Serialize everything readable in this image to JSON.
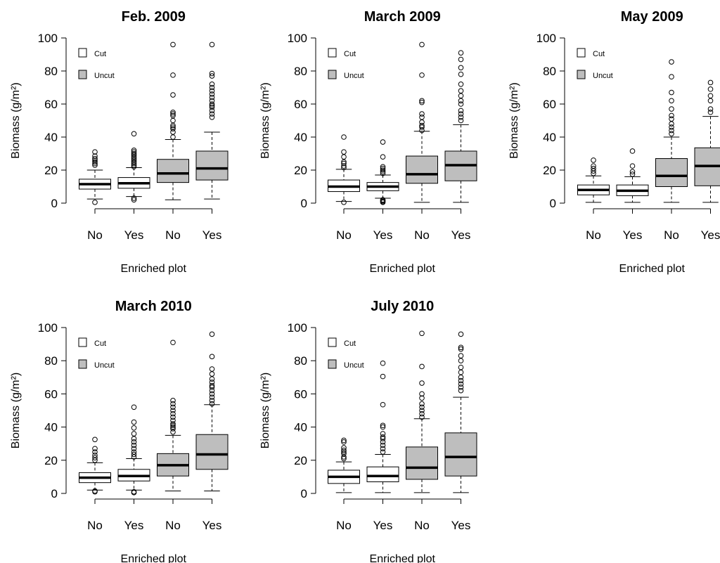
{
  "figure": {
    "legend": [
      {
        "label": "Cut",
        "color": "#ffffff"
      },
      {
        "label": "Uncut",
        "color": "#bebebe"
      }
    ]
  },
  "chart_data": [
    {
      "type": "boxplot",
      "title": "Feb. 2009",
      "xlabel": "Enriched plot",
      "ylabel": "Biomass (g/m²)",
      "ylim": [
        0,
        100
      ],
      "yticks": [
        0,
        20,
        40,
        60,
        80,
        100
      ],
      "categories": [
        "No",
        "Yes",
        "No",
        "Yes"
      ],
      "groups": [
        "Cut",
        "Cut",
        "Uncut",
        "Uncut"
      ],
      "boxes": [
        {
          "min": 2.5,
          "q1": 8.5,
          "median": 11.5,
          "q3": 14.5,
          "max": 20,
          "outliers": [
            0.5,
            23,
            24,
            25,
            26,
            27,
            28.5,
            31
          ]
        },
        {
          "min": 4,
          "q1": 9,
          "median": 12,
          "q3": 15.5,
          "max": 21.5,
          "outliers": [
            2,
            3,
            22,
            23,
            24,
            25,
            26,
            27,
            28,
            29,
            30,
            31,
            32,
            42
          ]
        },
        {
          "min": 2,
          "q1": 12.5,
          "median": 18,
          "q3": 26.5,
          "max": 38.5,
          "outliers": [
            40,
            43,
            45,
            46,
            47,
            50,
            53,
            54,
            55,
            65.5,
            77.5,
            96
          ]
        },
        {
          "min": 2.5,
          "q1": 14,
          "median": 21,
          "q3": 31.5,
          "max": 43,
          "outliers": [
            52,
            54,
            56,
            58,
            59,
            60,
            62,
            64,
            66,
            68,
            70,
            72,
            77,
            78.5,
            96
          ]
        }
      ]
    },
    {
      "type": "boxplot",
      "title": "March 2009",
      "xlabel": "Enriched plot",
      "ylabel": "Biomass (g/m²)",
      "ylim": [
        0,
        100
      ],
      "yticks": [
        0,
        20,
        40,
        60,
        80,
        100
      ],
      "categories": [
        "No",
        "Yes",
        "No",
        "Yes"
      ],
      "groups": [
        "Cut",
        "Cut",
        "Uncut",
        "Uncut"
      ],
      "boxes": [
        {
          "min": 1,
          "q1": 7,
          "median": 10,
          "q3": 14,
          "max": 20.5,
          "outliers": [
            0.5,
            21.5,
            22.5,
            24,
            25,
            28,
            31,
            40
          ]
        },
        {
          "min": 3,
          "q1": 7.5,
          "median": 10,
          "q3": 12.5,
          "max": 17,
          "outliers": [
            0.5,
            1,
            1.5,
            2,
            18,
            19,
            20,
            21,
            22,
            28,
            37
          ]
        },
        {
          "min": 0.5,
          "q1": 12,
          "median": 17.5,
          "q3": 28.5,
          "max": 43.5,
          "outliers": [
            44,
            46,
            47,
            49,
            52,
            54,
            61,
            62,
            77.5,
            96
          ]
        },
        {
          "min": 0.5,
          "q1": 13.5,
          "median": 23,
          "q3": 31.5,
          "max": 47.5,
          "outliers": [
            50,
            52,
            54,
            56,
            60,
            62,
            65,
            68,
            72,
            78,
            82,
            87,
            91
          ]
        }
      ]
    },
    {
      "type": "boxplot",
      "title": "May 2009",
      "xlabel": "Enriched plot",
      "ylabel": "Biomass (g/m²)",
      "ylim": [
        0,
        100
      ],
      "yticks": [
        0,
        20,
        40,
        60,
        80,
        100
      ],
      "categories": [
        "No",
        "Yes",
        "No",
        "Yes"
      ],
      "groups": [
        "Cut",
        "Cut",
        "Uncut",
        "Uncut"
      ],
      "boxes": [
        {
          "min": 0.5,
          "q1": 5,
          "median": 8,
          "q3": 11,
          "max": 16.5,
          "outliers": [
            18,
            19.5,
            21,
            22.5,
            26
          ]
        },
        {
          "min": 0.5,
          "q1": 4.5,
          "median": 7.5,
          "q3": 11,
          "max": 16,
          "outliers": [
            17.5,
            19,
            22.5,
            31.5
          ]
        },
        {
          "min": 0.5,
          "q1": 10,
          "median": 16.5,
          "q3": 27,
          "max": 40,
          "outliers": [
            42,
            44,
            46,
            48,
            51,
            53,
            57,
            62,
            67,
            76.5,
            85.5
          ]
        },
        {
          "min": 0.5,
          "q1": 10.5,
          "median": 22.5,
          "q3": 33.5,
          "max": 52.5,
          "outliers": [
            55,
            57,
            62,
            65,
            69,
            73
          ]
        }
      ]
    },
    {
      "type": "boxplot",
      "title": "March 2010",
      "xlabel": "Enriched plot",
      "ylabel": "Biomass (g/m²)",
      "ylim": [
        0,
        100
      ],
      "yticks": [
        0,
        20,
        40,
        60,
        80,
        100
      ],
      "categories": [
        "No",
        "Yes",
        "No",
        "Yes"
      ],
      "groups": [
        "Cut",
        "Cut",
        "Uncut",
        "Uncut"
      ],
      "boxes": [
        {
          "min": 2,
          "q1": 6.5,
          "median": 9.5,
          "q3": 12.5,
          "max": 18.5,
          "outliers": [
            1,
            1.5,
            20,
            21.5,
            23,
            25,
            27,
            32.5
          ]
        },
        {
          "min": 2,
          "q1": 7.5,
          "median": 10.5,
          "q3": 14.5,
          "max": 21,
          "outliers": [
            0.5,
            1,
            22,
            23.5,
            25,
            27,
            29,
            31,
            33,
            36,
            39.5,
            43,
            52
          ]
        },
        {
          "min": 1.5,
          "q1": 10.5,
          "median": 17,
          "q3": 24,
          "max": 35,
          "outliers": [
            37,
            39,
            40,
            41,
            42,
            44,
            46,
            48,
            50,
            52,
            54,
            56,
            91
          ]
        },
        {
          "min": 1.5,
          "q1": 14.5,
          "median": 23.5,
          "q3": 35.5,
          "max": 53.5,
          "outliers": [
            54,
            56,
            58,
            60,
            62,
            64,
            65,
            67,
            69,
            72,
            75,
            82.5,
            96
          ]
        }
      ]
    },
    {
      "type": "boxplot",
      "title": "July 2010",
      "xlabel": "Enriched plot",
      "ylabel": "Biomass (g/m²)",
      "ylim": [
        0,
        100
      ],
      "yticks": [
        0,
        20,
        40,
        60,
        80,
        100
      ],
      "categories": [
        "No",
        "Yes",
        "No",
        "Yes"
      ],
      "groups": [
        "Cut",
        "Cut",
        "Uncut",
        "Uncut"
      ],
      "boxes": [
        {
          "min": 0.5,
          "q1": 6,
          "median": 10,
          "q3": 14,
          "max": 19,
          "outliers": [
            21,
            22,
            24,
            25,
            26,
            27.5,
            31,
            32
          ]
        },
        {
          "min": 0.5,
          "q1": 7,
          "median": 10.5,
          "q3": 16,
          "max": 23.5,
          "outliers": [
            25,
            27,
            29,
            31,
            33,
            34,
            36,
            40,
            41,
            53.5,
            70.5,
            78.5
          ]
        },
        {
          "min": 0.5,
          "q1": 8.5,
          "median": 15.5,
          "q3": 28,
          "max": 45,
          "outliers": [
            46,
            48,
            50,
            52,
            54,
            57.5,
            60,
            66.5,
            76.5,
            96.5
          ]
        },
        {
          "min": 0.5,
          "q1": 10.5,
          "median": 22,
          "q3": 36.5,
          "max": 58,
          "outliers": [
            62,
            64,
            66,
            68,
            70,
            73,
            76,
            80,
            83,
            87,
            88,
            96
          ]
        }
      ]
    }
  ]
}
